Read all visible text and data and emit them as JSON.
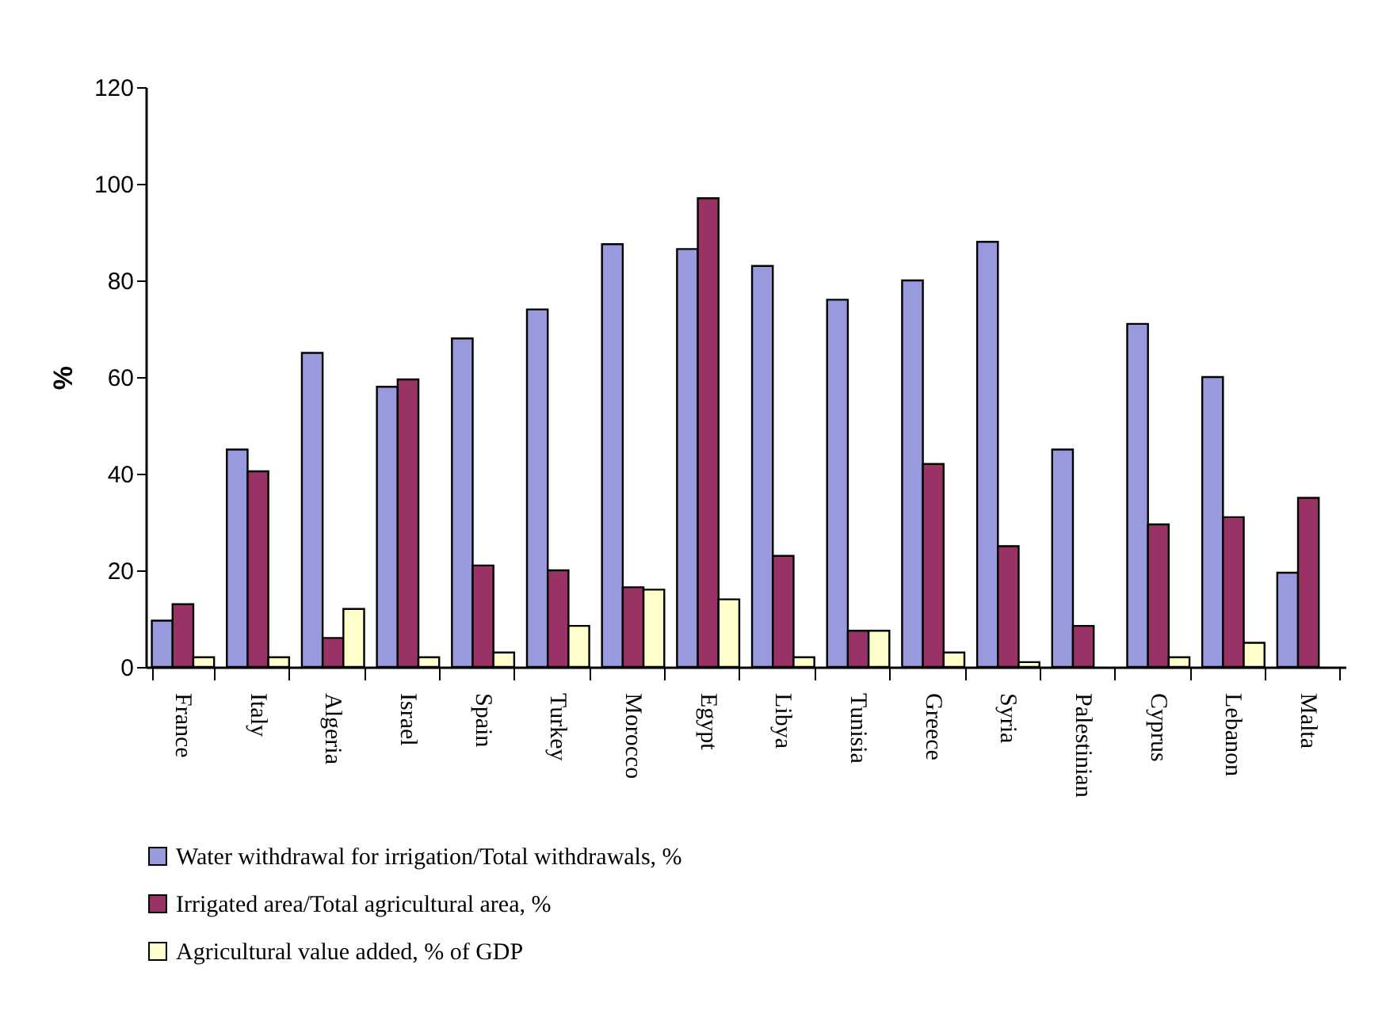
{
  "chart_data": {
    "type": "bar",
    "ylabel": "%",
    "categories": [
      "France",
      "Italy",
      "Algeria",
      "Israel",
      "Spain",
      "Turkey",
      "Morocco",
      "Egypt",
      "Libya",
      "Tunisia",
      "Greece",
      "Syria",
      "Palestinian",
      "Cyprus",
      "Lebanon",
      "Malta"
    ],
    "series": [
      {
        "name": "Water withdrawal for irrigation/Total withdrawals, %",
        "color": "#9999dd",
        "values": [
          9.6,
          45,
          65,
          58,
          68,
          74,
          87.5,
          86.5,
          83,
          76,
          80,
          88,
          45,
          71,
          60,
          19.5
        ]
      },
      {
        "name": "Irrigated area/Total agricultural area, %",
        "color": "#993366",
        "values": [
          13,
          40.5,
          6,
          59.5,
          21,
          20,
          16.5,
          97,
          23,
          7.5,
          42,
          25,
          8.5,
          29.5,
          31,
          35
        ]
      },
      {
        "name": "Agricultural value added, % of GDP",
        "color": "#ffffcc",
        "values": [
          2,
          2,
          12,
          2,
          3,
          8.5,
          16,
          14,
          2,
          7.5,
          3,
          1,
          null,
          2,
          5,
          null
        ]
      }
    ],
    "ylim": [
      0,
      120
    ],
    "yticks": [
      0,
      20,
      40,
      60,
      80,
      100,
      120
    ],
    "grid": false,
    "legend": "bottom"
  }
}
